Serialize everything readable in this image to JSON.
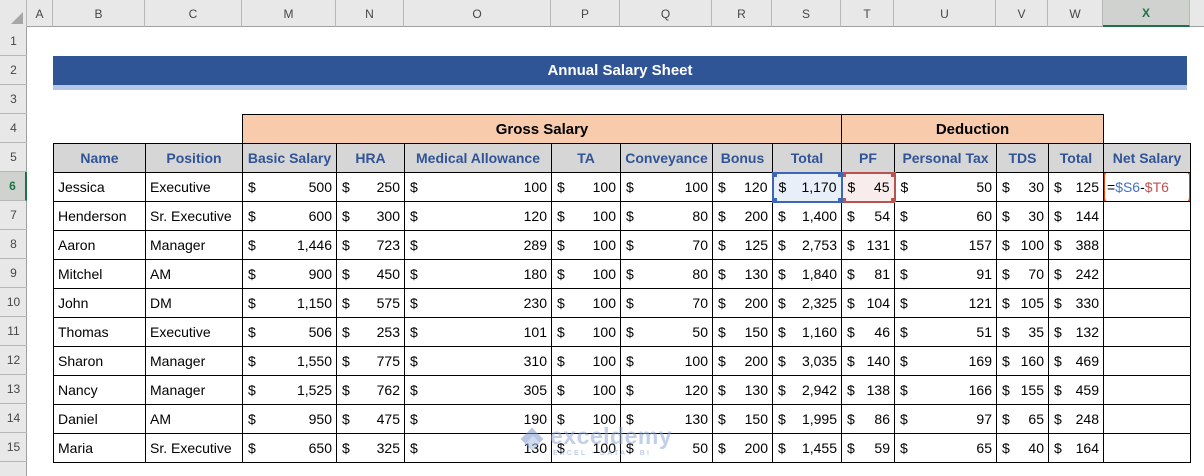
{
  "title": "Annual Salary Sheet",
  "spreadsheet": {
    "column_letters": [
      "A",
      "B",
      "C",
      "M",
      "N",
      "O",
      "P",
      "Q",
      "R",
      "S",
      "T",
      "U",
      "V",
      "W",
      "X"
    ],
    "selected_column": "X",
    "row_numbers": [
      "1",
      "2",
      "3",
      "4",
      "5",
      "6",
      "7",
      "8",
      "9",
      "10",
      "11",
      "12",
      "13",
      "14",
      "15"
    ],
    "selected_row": "6"
  },
  "table": {
    "currency_symbol": "$",
    "group_headers": [
      "Gross Salary",
      "Deduction"
    ],
    "columns": [
      "Name",
      "Position",
      "Basic Salary",
      "HRA",
      "Medical Allowance",
      "TA",
      "Conveyance",
      "Bonus",
      "Total",
      "PF",
      "Personal Tax",
      "TDS",
      "Total",
      "Net Salary"
    ],
    "rows": [
      {
        "row": "6",
        "name": "Jessica",
        "position": "Executive",
        "values": [
          "500",
          "250",
          "100",
          "100",
          "100",
          "120",
          "1,170",
          "45",
          "50",
          "30",
          "125"
        ]
      },
      {
        "row": "7",
        "name": "Henderson",
        "position": "Sr. Executive",
        "values": [
          "600",
          "300",
          "120",
          "100",
          "80",
          "200",
          "1,400",
          "54",
          "60",
          "30",
          "144"
        ]
      },
      {
        "row": "8",
        "name": "Aaron",
        "position": "Manager",
        "values": [
          "1,446",
          "723",
          "289",
          "100",
          "70",
          "125",
          "2,753",
          "131",
          "157",
          "100",
          "388"
        ]
      },
      {
        "row": "9",
        "name": "Mitchel",
        "position": "AM",
        "values": [
          "900",
          "450",
          "180",
          "100",
          "80",
          "130",
          "1,840",
          "81",
          "91",
          "70",
          "242"
        ]
      },
      {
        "row": "10",
        "name": "John",
        "position": "DM",
        "values": [
          "1,150",
          "575",
          "230",
          "100",
          "70",
          "200",
          "2,325",
          "104",
          "121",
          "105",
          "330"
        ]
      },
      {
        "row": "11",
        "name": "Thomas",
        "position": "Executive",
        "values": [
          "506",
          "253",
          "101",
          "100",
          "50",
          "150",
          "1,160",
          "46",
          "51",
          "35",
          "132"
        ]
      },
      {
        "row": "12",
        "name": "Sharon",
        "position": "Manager",
        "values": [
          "1,550",
          "775",
          "310",
          "100",
          "100",
          "200",
          "3,035",
          "140",
          "169",
          "160",
          "469"
        ]
      },
      {
        "row": "13",
        "name": "Nancy",
        "position": "Manager",
        "values": [
          "1,525",
          "762",
          "305",
          "100",
          "120",
          "130",
          "2,942",
          "138",
          "166",
          "155",
          "459"
        ]
      },
      {
        "row": "14",
        "name": "Daniel",
        "position": "AM",
        "values": [
          "950",
          "475",
          "190",
          "100",
          "130",
          "150",
          "1,995",
          "86",
          "97",
          "65",
          "248"
        ]
      },
      {
        "row": "15",
        "name": "Maria",
        "position": "Sr. Executive",
        "values": [
          "650",
          "325",
          "130",
          "100",
          "50",
          "200",
          "1,455",
          "59",
          "65",
          "40",
          "164"
        ]
      }
    ]
  },
  "formula": {
    "cell": "X6",
    "parts": [
      {
        "text": "=",
        "color": "black"
      },
      {
        "text": "$S6",
        "color": "blue"
      },
      {
        "text": "-",
        "color": "black"
      },
      {
        "text": "$T6",
        "color": "red"
      }
    ],
    "referenced_cells": [
      {
        "cell": "S6",
        "color": "blue"
      },
      {
        "cell": "T6",
        "color": "red"
      }
    ]
  },
  "watermark": {
    "brand": "exceldemy",
    "tagline": "EXCEL · DATA · BI"
  },
  "colors": {
    "banner_bg": "#2f5597",
    "banner_underline": "#b4c7e7",
    "group_header_bg": "#f8cbad",
    "header_row_bg": "#d6d6d6",
    "header_text": "#305496",
    "ref_blue": "#3b67b5",
    "ref_blue_fill": "#e9eff9",
    "ref_red": "#b85450",
    "ref_red_fill": "#f8edec",
    "annotation_border": "#e8440d",
    "selection_green": "#1f7246"
  }
}
